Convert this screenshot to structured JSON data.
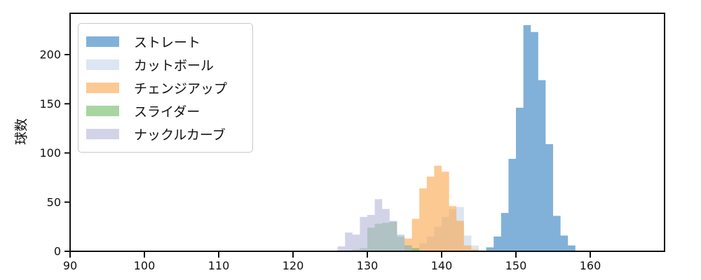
{
  "figure": {
    "background": "#ffffff",
    "spine_color": "#111111",
    "text_color": "#111111"
  },
  "chart_data": {
    "type": "histogram",
    "title": "",
    "xlabel": "",
    "ylabel": "球数",
    "xlim": [
      90,
      170
    ],
    "ylim": [
      0,
      242
    ],
    "xticks": [
      90,
      100,
      110,
      120,
      130,
      140,
      150,
      160
    ],
    "yticks": [
      0,
      50,
      100,
      150,
      200
    ],
    "bin_width": 1,
    "grid": false,
    "legend_position": "upper left",
    "series": [
      {
        "name": "ストレート",
        "color": "#2d7dbe",
        "fill_opacity": 0.6,
        "bin_start": 146,
        "counts": [
          4,
          15,
          39,
          94,
          146,
          230,
          223,
          174,
          109,
          36,
          16,
          6
        ]
      },
      {
        "name": "カットボール",
        "color": "#c3d5e9",
        "fill_opacity": 0.6,
        "bin_start": 136,
        "counts": [
          3,
          8,
          15,
          25,
          35,
          43,
          45,
          16,
          6,
          1
        ]
      },
      {
        "name": "チェンジアップ",
        "color": "#faa54b",
        "fill_opacity": 0.6,
        "bin_start": 135,
        "counts": [
          13,
          33,
          64,
          76,
          87,
          81,
          46,
          31,
          6,
          2
        ]
      },
      {
        "name": "スライダー",
        "color": "#6eb964",
        "fill_opacity": 0.6,
        "bin_start": 127,
        "counts": [
          1,
          2,
          3,
          24,
          28,
          29,
          30,
          15,
          6,
          3
        ]
      },
      {
        "name": "ナックルカーブ",
        "color": "#b6b6d9",
        "fill_opacity": 0.6,
        "bin_start": 126,
        "counts": [
          5,
          19,
          17,
          35,
          37,
          53,
          43,
          31,
          17,
          5
        ]
      }
    ]
  }
}
